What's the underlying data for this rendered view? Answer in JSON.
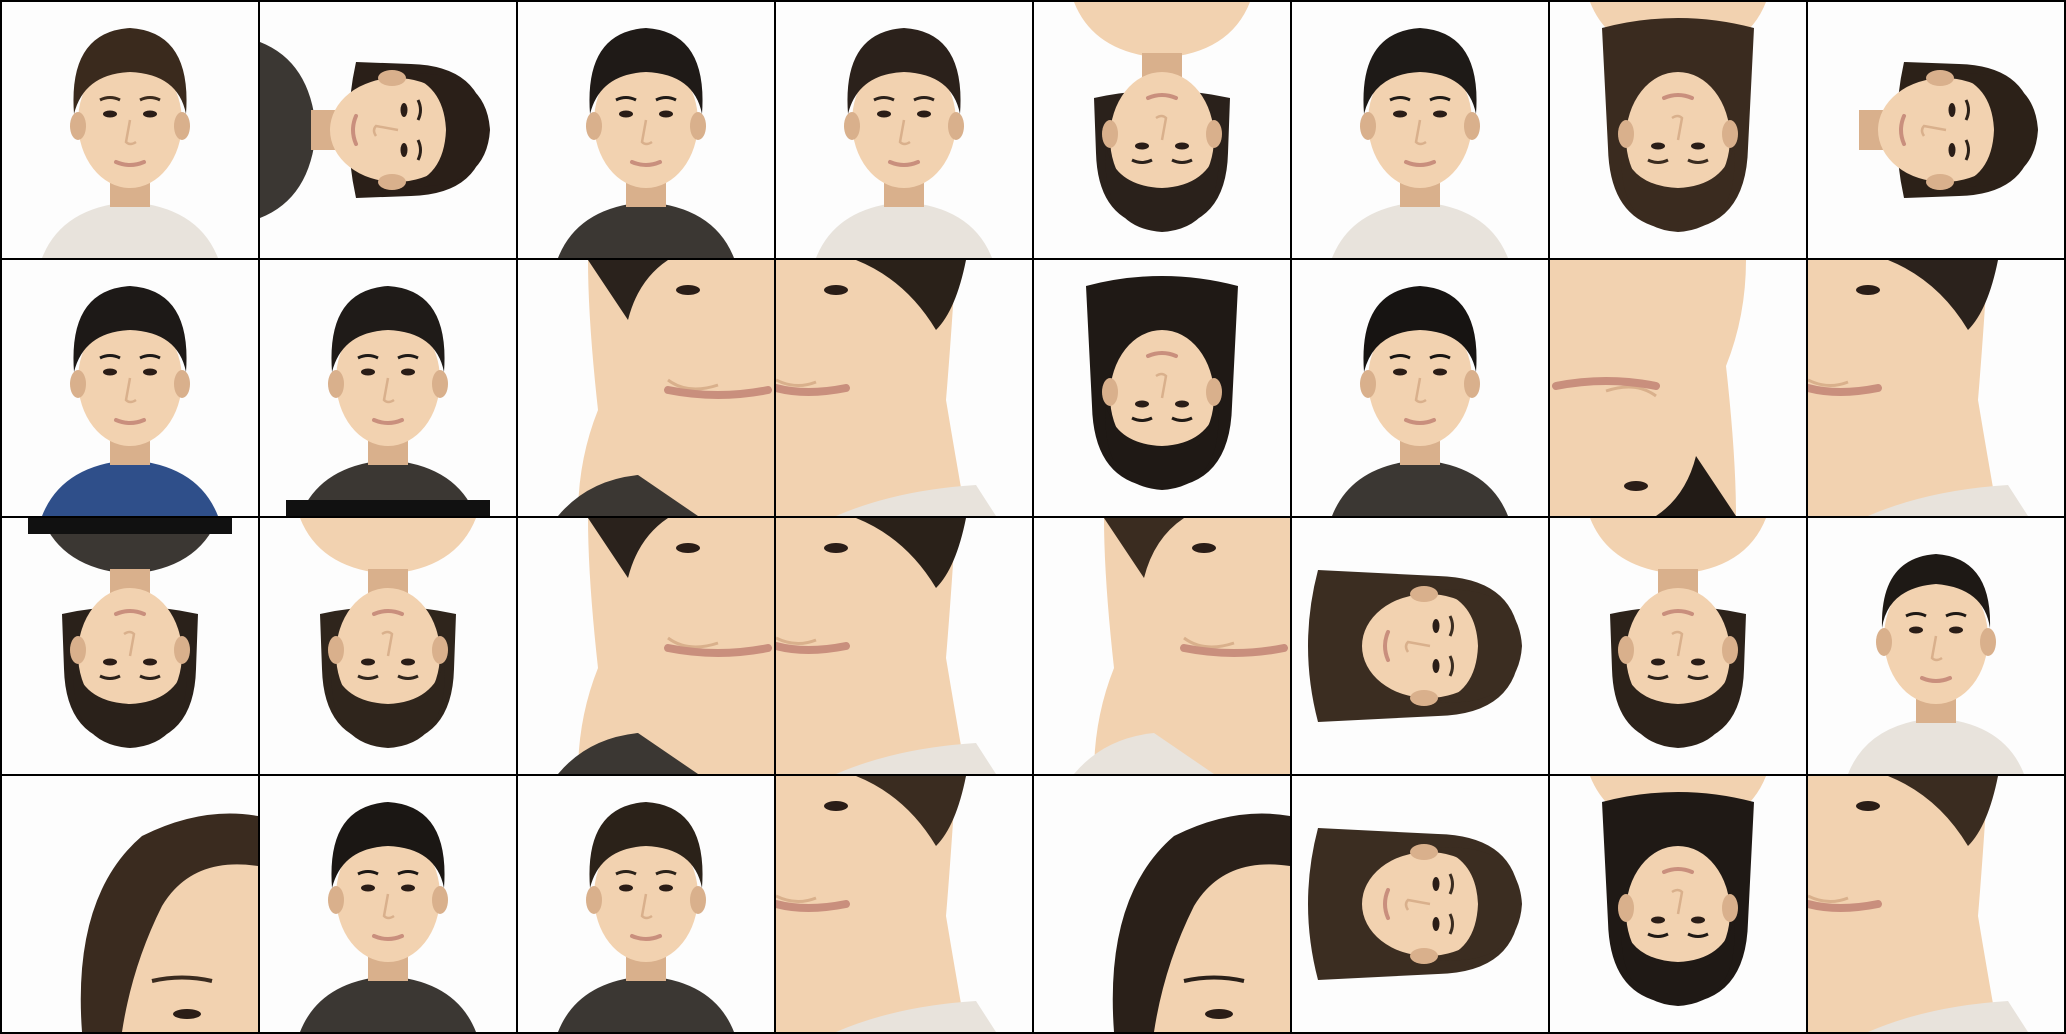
{
  "grid": {
    "rows": 4,
    "columns": 8,
    "tiles": [
      {
        "row": 1,
        "col": 1,
        "rotation": 0,
        "view": "full-face",
        "hair": "short",
        "hair_color": "#3a2a1d",
        "clothing": "light"
      },
      {
        "row": 1,
        "col": 2,
        "rotation": 90,
        "view": "full-face",
        "hair": "medium",
        "hair_color": "#2a1f18",
        "clothing": "dark"
      },
      {
        "row": 1,
        "col": 3,
        "rotation": 0,
        "view": "full-face",
        "hair": "short",
        "hair_color": "#1f1a17",
        "clothing": "dark"
      },
      {
        "row": 1,
        "col": 4,
        "rotation": 0,
        "view": "full-face",
        "hair": "short",
        "hair_color": "#2b211b",
        "clothing": "light"
      },
      {
        "row": 1,
        "col": 5,
        "rotation": 180,
        "view": "full-face",
        "hair": "medium",
        "hair_color": "#2a211b",
        "clothing": "skin"
      },
      {
        "row": 1,
        "col": 6,
        "rotation": 0,
        "view": "full-face",
        "hair": "short",
        "hair_color": "#1e1a17",
        "clothing": "light"
      },
      {
        "row": 1,
        "col": 7,
        "rotation": 180,
        "view": "full-face",
        "hair": "long",
        "hair_color": "#3a2b1f",
        "clothing": "skin"
      },
      {
        "row": 1,
        "col": 8,
        "rotation": 90,
        "view": "full-face",
        "hair": "medium",
        "hair_color": "#2c2118",
        "clothing": "none"
      },
      {
        "row": 2,
        "col": 1,
        "rotation": 0,
        "view": "full-face",
        "hair": "short",
        "hair_color": "#1d1917",
        "clothing": "blue"
      },
      {
        "row": 2,
        "col": 2,
        "rotation": 0,
        "view": "full-face",
        "hair": "short",
        "hair_color": "#1f1b18",
        "clothing": "dark-band"
      },
      {
        "row": 2,
        "col": 3,
        "rotation": 0,
        "view": "closeup-left",
        "hair": "short",
        "hair_color": "#2a221c",
        "clothing": "dark"
      },
      {
        "row": 2,
        "col": 4,
        "rotation": 0,
        "view": "closeup-right",
        "hair": "short",
        "hair_color": "#2a2119",
        "clothing": "light"
      },
      {
        "row": 2,
        "col": 5,
        "rotation": 180,
        "view": "full-face",
        "hair": "long",
        "hair_color": "#1f1915",
        "clothing": "none"
      },
      {
        "row": 2,
        "col": 6,
        "rotation": 0,
        "view": "full-face",
        "hair": "short",
        "hair_color": "#171412",
        "clothing": "dark"
      },
      {
        "row": 2,
        "col": 7,
        "rotation": 180,
        "view": "closeup-left",
        "hair": "short",
        "hair_color": "#221b16",
        "clothing": "none"
      },
      {
        "row": 2,
        "col": 8,
        "rotation": 0,
        "view": "closeup-right",
        "hair": "short",
        "hair_color": "#2b221c",
        "clothing": "light"
      },
      {
        "row": 3,
        "col": 1,
        "rotation": 180,
        "view": "full-face",
        "hair": "medium",
        "hair_color": "#2a211a",
        "clothing": "dark-band"
      },
      {
        "row": 3,
        "col": 2,
        "rotation": 180,
        "view": "full-face",
        "hair": "medium",
        "hair_color": "#2f251c",
        "clothing": "skin"
      },
      {
        "row": 3,
        "col": 3,
        "rotation": 0,
        "view": "closeup-left",
        "hair": "short",
        "hair_color": "#2a221c",
        "clothing": "dark"
      },
      {
        "row": 3,
        "col": 4,
        "rotation": 0,
        "view": "closeup-right",
        "hair": "short",
        "hair_color": "#2a2119",
        "clothing": "light"
      },
      {
        "row": 3,
        "col": 5,
        "rotation": 0,
        "view": "closeup-left",
        "hair": "short",
        "hair_color": "#3a2c20",
        "clothing": "light"
      },
      {
        "row": 3,
        "col": 6,
        "rotation": 90,
        "view": "full-face",
        "hair": "long",
        "hair_color": "#3b2d21",
        "clothing": "none"
      },
      {
        "row": 3,
        "col": 7,
        "rotation": 180,
        "view": "full-face",
        "hair": "medium",
        "hair_color": "#2c221a",
        "clothing": "skin"
      },
      {
        "row": 3,
        "col": 8,
        "rotation": 0,
        "view": "full-face",
        "hair": "tied",
        "hair_color": "#1e1915",
        "clothing": "light"
      },
      {
        "row": 4,
        "col": 1,
        "rotation": 0,
        "view": "closeup-top",
        "hair": "long",
        "hair_color": "#3a2b1f",
        "clothing": "none"
      },
      {
        "row": 4,
        "col": 2,
        "rotation": 0,
        "view": "full-face",
        "hair": "short",
        "hair_color": "#1b1714",
        "clothing": "dark"
      },
      {
        "row": 4,
        "col": 3,
        "rotation": 0,
        "view": "full-face",
        "hair": "short",
        "hair_color": "#2b2219",
        "clothing": "dark"
      },
      {
        "row": 4,
        "col": 4,
        "rotation": 0,
        "view": "closeup-right",
        "hair": "short",
        "hair_color": "#3a2c20",
        "clothing": "light"
      },
      {
        "row": 4,
        "col": 5,
        "rotation": 0,
        "view": "closeup-top",
        "hair": "long",
        "hair_color": "#2a2019",
        "clothing": "none"
      },
      {
        "row": 4,
        "col": 6,
        "rotation": 90,
        "view": "full-face",
        "hair": "long",
        "hair_color": "#3b2d21",
        "clothing": "none"
      },
      {
        "row": 4,
        "col": 7,
        "rotation": 180,
        "view": "full-face",
        "hair": "long",
        "hair_color": "#1f1915",
        "clothing": "skin"
      },
      {
        "row": 4,
        "col": 8,
        "rotation": 0,
        "view": "closeup-right",
        "hair": "short",
        "hair_color": "#3a2c20",
        "clothing": "light"
      }
    ]
  },
  "colors": {
    "grid_line": "#000000",
    "background": "#fdfdfd",
    "skin": "#f2d2b0",
    "skin_shadow": "#d9b08c",
    "lips": "#c98f7d",
    "eye": "#2a1d17",
    "blue_clothing": "#2f4f8a",
    "dark_clothing": "#3b3733",
    "light_clothing": "#e8e3dc"
  }
}
